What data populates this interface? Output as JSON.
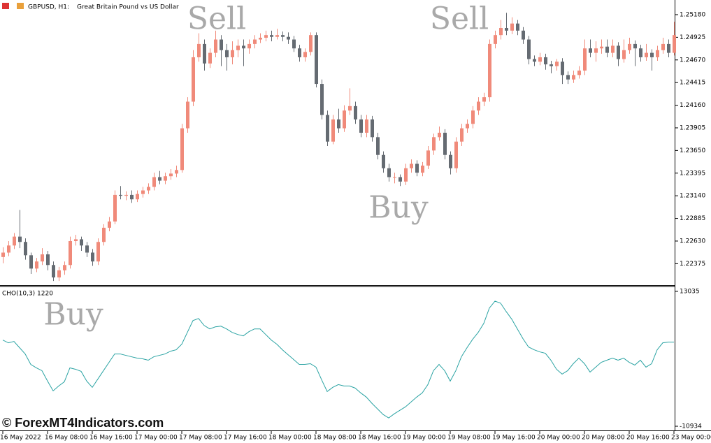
{
  "header": {
    "symbol": "GBPUSD, H1:",
    "description": "Great Britain Pound vs US Dollar"
  },
  "watermark": "© ForexMT4Indicators.com",
  "chart_data": [
    {
      "type": "candlestick",
      "up_color": "#f08a7a",
      "down_color": "#656b72",
      "annotations": [
        "Sell",
        "Sell",
        "Buy"
      ],
      "ylim": [
        1.22134,
        1.25345
      ],
      "yticks": [
        {
          "value": 1.2518,
          "label": "1.25180"
        },
        {
          "value": 1.24925,
          "label": "1.24925"
        },
        {
          "value": 1.2467,
          "label": "1.24670"
        },
        {
          "value": 1.24415,
          "label": "1.24415"
        },
        {
          "value": 1.2416,
          "label": "1.24160"
        },
        {
          "value": 1.23905,
          "label": "1.23905"
        },
        {
          "value": 1.2365,
          "label": "1.23650"
        },
        {
          "value": 1.23395,
          "label": "1.23395"
        },
        {
          "value": 1.2314,
          "label": "1.23140"
        },
        {
          "value": 1.22885,
          "label": "1.22885"
        },
        {
          "value": 1.2263,
          "label": "1.22630"
        },
        {
          "value": 1.22375,
          "label": "1.22375"
        }
      ],
      "xticks": [
        {
          "value": 0,
          "label": "16 May 2022"
        },
        {
          "value": 8,
          "label": "16 May 08:00"
        },
        {
          "value": 16,
          "label": "16 May 16:00"
        },
        {
          "value": 24,
          "label": "17 May 00:00"
        },
        {
          "value": 32,
          "label": "17 May 08:00"
        },
        {
          "value": 40,
          "label": "17 May 16:00"
        },
        {
          "value": 48,
          "label": "18 May 00:00"
        },
        {
          "value": 56,
          "label": "18 May 08:00"
        },
        {
          "value": 64,
          "label": "18 May 16:00"
        },
        {
          "value": 72,
          "label": "19 May 00:00"
        },
        {
          "value": 80,
          "label": "19 May 08:00"
        },
        {
          "value": 88,
          "label": "19 May 16:00"
        },
        {
          "value": 96,
          "label": "20 May 00:00"
        },
        {
          "value": 104,
          "label": "20 May 08:00"
        },
        {
          "value": 112,
          "label": "20 May 16:00"
        },
        {
          "value": 120,
          "label": "23 May 00:00"
        }
      ],
      "ohlc": [
        [
          1.2245,
          1.2256,
          1.2238,
          1.225
        ],
        [
          1.225,
          1.2263,
          1.2246,
          1.2258
        ],
        [
          1.2258,
          1.2272,
          1.2254,
          1.2268
        ],
        [
          1.2268,
          1.2298,
          1.2255,
          1.2262
        ],
        [
          1.2262,
          1.2266,
          1.2242,
          1.2247
        ],
        [
          1.2247,
          1.225,
          1.2226,
          1.2232
        ],
        [
          1.2232,
          1.2244,
          1.2228,
          1.224
        ],
        [
          1.224,
          1.2255,
          1.2236,
          1.2248
        ],
        [
          1.2248,
          1.2252,
          1.223,
          1.2236
        ],
        [
          1.2236,
          1.224,
          1.2218,
          1.2222
        ],
        [
          1.2222,
          1.2234,
          1.2218,
          1.223
        ],
        [
          1.223,
          1.224,
          1.2225,
          1.2236
        ],
        [
          1.2236,
          1.2268,
          1.2232,
          1.2263
        ],
        [
          1.2263,
          1.227,
          1.2258,
          1.2265
        ],
        [
          1.2265,
          1.2268,
          1.2252,
          1.2258
        ],
        [
          1.2258,
          1.2262,
          1.2245,
          1.225
        ],
        [
          1.225,
          1.2254,
          1.2235,
          1.224
        ],
        [
          1.224,
          1.2266,
          1.2236,
          1.2262
        ],
        [
          1.2262,
          1.2282,
          1.2258,
          1.2278
        ],
        [
          1.2278,
          1.229,
          1.2274,
          1.2285
        ],
        [
          1.2285,
          1.232,
          1.2282,
          1.2315
        ],
        [
          1.2315,
          1.2325,
          1.231,
          1.2314
        ],
        [
          1.2314,
          1.2319,
          1.2309,
          1.2315
        ],
        [
          1.2315,
          1.232,
          1.2306,
          1.231
        ],
        [
          1.231,
          1.232,
          1.2307,
          1.2316
        ],
        [
          1.2316,
          1.2324,
          1.2312,
          1.232
        ],
        [
          1.232,
          1.2328,
          1.2316,
          1.2324
        ],
        [
          1.2324,
          1.234,
          1.232,
          1.2335
        ],
        [
          1.2335,
          1.2342,
          1.2327,
          1.2331
        ],
        [
          1.2331,
          1.234,
          1.2327,
          1.2336
        ],
        [
          1.2336,
          1.2344,
          1.2332,
          1.2339
        ],
        [
          1.2339,
          1.2348,
          1.2335,
          1.2343
        ],
        [
          1.2343,
          1.2395,
          1.234,
          1.239
        ],
        [
          1.239,
          1.2425,
          1.2385,
          1.242
        ],
        [
          1.242,
          1.2478,
          1.2415,
          1.247
        ],
        [
          1.247,
          1.2497,
          1.2465,
          1.2485
        ],
        [
          1.2485,
          1.249,
          1.2455,
          1.2463
        ],
        [
          1.2463,
          1.248,
          1.2458,
          1.2475
        ],
        [
          1.2475,
          1.25,
          1.247,
          1.249
        ],
        [
          1.249,
          1.2495,
          1.246,
          1.2478
        ],
        [
          1.2478,
          1.2485,
          1.2455,
          1.247
        ],
        [
          1.247,
          1.2488,
          1.2462,
          1.2478
        ],
        [
          1.2478,
          1.249,
          1.247,
          1.2483
        ],
        [
          1.2483,
          1.249,
          1.246,
          1.248
        ],
        [
          1.248,
          1.249,
          1.2474,
          1.2485
        ],
        [
          1.2485,
          1.2495,
          1.248,
          1.249
        ],
        [
          1.249,
          1.2497,
          1.2486,
          1.2492
        ],
        [
          1.2492,
          1.25,
          1.2488,
          1.2495
        ],
        [
          1.2495,
          1.25,
          1.2488,
          1.2493
        ],
        [
          1.2493,
          1.2502,
          1.249,
          1.2495
        ],
        [
          1.2495,
          1.2499,
          1.2488,
          1.2493
        ],
        [
          1.2493,
          1.2498,
          1.2485,
          1.249
        ],
        [
          1.249,
          1.2494,
          1.2476,
          1.248
        ],
        [
          1.248,
          1.2484,
          1.2465,
          1.247
        ],
        [
          1.247,
          1.248,
          1.2465,
          1.2476
        ],
        [
          1.2476,
          1.2498,
          1.2472,
          1.2495
        ],
        [
          1.2495,
          1.2498,
          1.2436,
          1.244
        ],
        [
          1.244,
          1.2445,
          1.24,
          1.2405
        ],
        [
          1.2405,
          1.241,
          1.237,
          1.2375
        ],
        [
          1.2375,
          1.2405,
          1.2372,
          1.24
        ],
        [
          1.24,
          1.2412,
          1.2385,
          1.239
        ],
        [
          1.239,
          1.2416,
          1.2386,
          1.241
        ],
        [
          1.241,
          1.2435,
          1.2405,
          1.2415
        ],
        [
          1.2415,
          1.242,
          1.2395,
          1.24
        ],
        [
          1.24,
          1.2405,
          1.238,
          1.2385
        ],
        [
          1.2385,
          1.2405,
          1.238,
          1.24
        ],
        [
          1.24,
          1.2404,
          1.2375,
          1.238
        ],
        [
          1.238,
          1.2385,
          1.2355,
          1.236
        ],
        [
          1.236,
          1.2364,
          1.234,
          1.2345
        ],
        [
          1.2345,
          1.235,
          1.233,
          1.2335
        ],
        [
          1.2335,
          1.234,
          1.2328,
          1.2335
        ],
        [
          1.2335,
          1.2338,
          1.2325,
          1.233
        ],
        [
          1.233,
          1.235,
          1.2326,
          1.2345
        ],
        [
          1.2345,
          1.2355,
          1.234,
          1.235
        ],
        [
          1.235,
          1.2354,
          1.2336,
          1.234
        ],
        [
          1.234,
          1.2352,
          1.2336,
          1.2348
        ],
        [
          1.2348,
          1.237,
          1.2344,
          1.2365
        ],
        [
          1.2365,
          1.2384,
          1.236,
          1.238
        ],
        [
          1.238,
          1.2392,
          1.2376,
          1.2385
        ],
        [
          1.2385,
          1.2389,
          1.2355,
          1.236
        ],
        [
          1.236,
          1.2364,
          1.2338,
          1.2345
        ],
        [
          1.2345,
          1.238,
          1.234,
          1.2375
        ],
        [
          1.2375,
          1.2395,
          1.237,
          1.239
        ],
        [
          1.239,
          1.24,
          1.2385,
          1.2395
        ],
        [
          1.2395,
          1.2415,
          1.239,
          1.241
        ],
        [
          1.241,
          1.2425,
          1.2405,
          1.242
        ],
        [
          1.242,
          1.243,
          1.2415,
          1.2425
        ],
        [
          1.2425,
          1.249,
          1.242,
          1.2485
        ],
        [
          1.2485,
          1.25,
          1.248,
          1.2495
        ],
        [
          1.2495,
          1.2512,
          1.249,
          1.2503
        ],
        [
          1.2503,
          1.252,
          1.2495,
          1.25
        ],
        [
          1.25,
          1.2515,
          1.2496,
          1.2508
        ],
        [
          1.2508,
          1.2512,
          1.2495,
          1.25
        ],
        [
          1.25,
          1.2504,
          1.2485,
          1.249
        ],
        [
          1.249,
          1.2494,
          1.2462,
          1.2468
        ],
        [
          1.2468,
          1.2472,
          1.246,
          1.2465
        ],
        [
          1.2465,
          1.2475,
          1.2461,
          1.247
        ],
        [
          1.247,
          1.2474,
          1.2456,
          1.2462
        ],
        [
          1.2462,
          1.2466,
          1.2452,
          1.246
        ],
        [
          1.246,
          1.2468,
          1.2455,
          1.2465
        ],
        [
          1.2465,
          1.2469,
          1.244,
          1.245
        ],
        [
          1.245,
          1.2454,
          1.244,
          1.2445
        ],
        [
          1.2445,
          1.2455,
          1.2441,
          1.245
        ],
        [
          1.245,
          1.246,
          1.2446,
          1.2455
        ],
        [
          1.2455,
          1.249,
          1.245,
          1.248
        ],
        [
          1.248,
          1.249,
          1.247,
          1.2475
        ],
        [
          1.2475,
          1.2488,
          1.2465,
          1.248
        ],
        [
          1.248,
          1.249,
          1.2474,
          1.2482
        ],
        [
          1.2482,
          1.249,
          1.247,
          1.2475
        ],
        [
          1.2475,
          1.249,
          1.247,
          1.2483
        ],
        [
          1.2483,
          1.2487,
          1.246,
          1.2468
        ],
        [
          1.2468,
          1.249,
          1.2464,
          1.2478
        ],
        [
          1.2478,
          1.2492,
          1.2474,
          1.2485
        ],
        [
          1.2485,
          1.2489,
          1.246,
          1.248
        ],
        [
          1.248,
          1.2484,
          1.2465,
          1.247
        ],
        [
          1.247,
          1.2485,
          1.2466,
          1.2475
        ],
        [
          1.2475,
          1.2479,
          1.2455,
          1.247
        ],
        [
          1.247,
          1.2483,
          1.2466,
          1.2478
        ],
        [
          1.2478,
          1.2492,
          1.2474,
          1.2485
        ],
        [
          1.2485,
          1.249,
          1.247,
          1.2475
        ],
        [
          1.2475,
          1.251,
          1.2472,
          1.2495
        ]
      ]
    },
    {
      "type": "line",
      "title": "CHO(10,3) 1220",
      "color": "#2aa3a3",
      "annotations": [
        "Buy"
      ],
      "ylim": [
        -11676,
        13777
      ],
      "yticks": [
        13035,
        -10934
      ],
      "values": [
        4383,
        3889,
        4136,
        3023,
        1911,
        57,
        -561,
        -1055,
        -2909,
        -4640,
        -3775,
        -3033,
        -561,
        -808,
        -1179,
        -2909,
        -4022,
        -2539,
        -1055,
        428,
        1911,
        1911,
        1664,
        1417,
        1169,
        1046,
        799,
        1417,
        1664,
        1911,
        2405,
        2653,
        3641,
        5743,
        7844,
        8215,
        6979,
        6361,
        6731,
        6855,
        6361,
        5743,
        5372,
        5125,
        5866,
        6361,
        6361,
        5372,
        4383,
        3641,
        2653,
        1787,
        922,
        57,
        57,
        181,
        -437,
        -2662,
        -4763,
        -4022,
        -3527,
        -3775,
        -3775,
        -4145,
        -5011,
        -5752,
        -6865,
        -7853,
        -8842,
        -9460,
        -8719,
        -8101,
        -7483,
        -6617,
        -5752,
        -5011,
        -3527,
        -1055,
        57,
        -1055,
        -2909,
        -1055,
        1417,
        3023,
        4507,
        5743,
        7349,
        10069,
        11305,
        10934,
        9451,
        8091,
        6361,
        4630,
        3147,
        2653,
        2282,
        2035,
        799,
        -808,
        -1673,
        -1055,
        181,
        1169,
        181,
        -1303,
        -437,
        428,
        799,
        1169,
        799,
        1169,
        428,
        -67,
        799,
        -437,
        181,
        2653,
        3889,
        4012,
        4012
      ]
    }
  ]
}
